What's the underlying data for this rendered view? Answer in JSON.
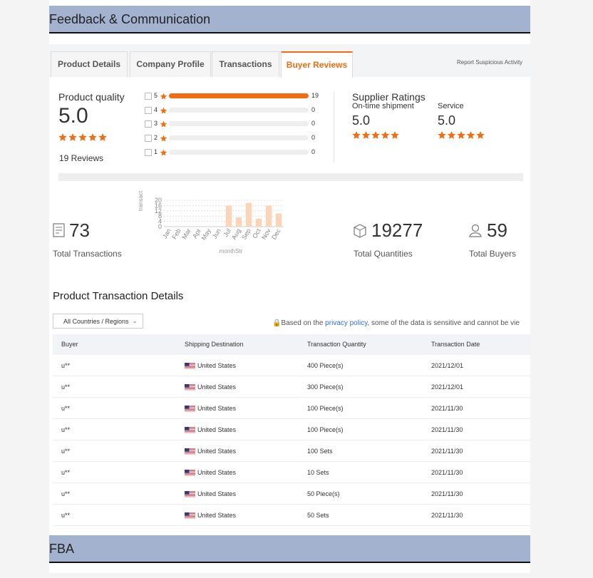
{
  "header": {
    "title": "Feedback & Communication"
  },
  "tabs": [
    "Product Details",
    "Company Profile",
    "Transactions",
    "Buyer Reviews"
  ],
  "report_link": "Report Suspicious Activity",
  "product_quality": {
    "label": "Product quality",
    "score": "5.0",
    "reviews": "19 Reviews"
  },
  "rating_distribution": [
    {
      "stars": 5,
      "count": 19
    },
    {
      "stars": 4,
      "count": 0
    },
    {
      "stars": 3,
      "count": 0
    },
    {
      "stars": 2,
      "count": 0
    },
    {
      "stars": 1,
      "count": 0
    }
  ],
  "supplier_ratings": {
    "title": "Supplier Ratings",
    "items": [
      {
        "label": "On-time shipment",
        "score": "5.0"
      },
      {
        "label": "Service",
        "score": "5.0"
      }
    ]
  },
  "stats": [
    {
      "value": 73,
      "label": "Total Transactions"
    },
    {
      "value": 19277,
      "label": "Total Quantities"
    },
    {
      "value": 59,
      "label": "Total Buyers"
    }
  ],
  "chart_data": {
    "type": "bar",
    "categories": [
      "Jan",
      "Feb",
      "Mar",
      "Apr",
      "May",
      "Jun",
      "Jul",
      "Aug",
      "Sep",
      "Oct",
      "Nov",
      "Dec"
    ],
    "values": [
      0,
      0,
      0,
      0,
      0,
      0,
      16,
      7,
      18,
      6,
      16,
      10
    ],
    "color": "#fcd5b8",
    "ylim": [
      0,
      20
    ],
    "yticks": [
      0,
      4,
      8,
      12,
      16,
      20
    ],
    "x_label": "monthStr",
    "y_label": "transact",
    "grid": true
  },
  "details": {
    "title": "Product Transaction Details",
    "filter": "All Countries / Regions",
    "notice": {
      "before": "Based on the ",
      "link": "privacy policy",
      "after": ", some of the data is sensitive and cannot be vie"
    }
  },
  "table": {
    "columns": [
      "Buyer",
      "Shipping Destination",
      "Transaction Quantity",
      "Transaction Date"
    ],
    "rows": [
      [
        "u**",
        "United States",
        "400 Piece(s)",
        "2021/12/01"
      ],
      [
        "u**",
        "United States",
        "300 Piece(s)",
        "2021/12/01"
      ],
      [
        "u**",
        "United States",
        "100 Piece(s)",
        "2021/11/30"
      ],
      [
        "u**",
        "United States",
        "100 Piece(s)",
        "2021/11/30"
      ],
      [
        "u**",
        "United States",
        "100 Sets",
        "2021/11/30"
      ],
      [
        "u**",
        "United States",
        "10 Sets",
        "2021/11/30"
      ],
      [
        "u**",
        "United States",
        "50 Piece(s)",
        "2021/11/30"
      ],
      [
        "u**",
        "United States",
        "50 Sets",
        "2021/11/30"
      ]
    ]
  },
  "footer": {
    "title": "FBA"
  }
}
